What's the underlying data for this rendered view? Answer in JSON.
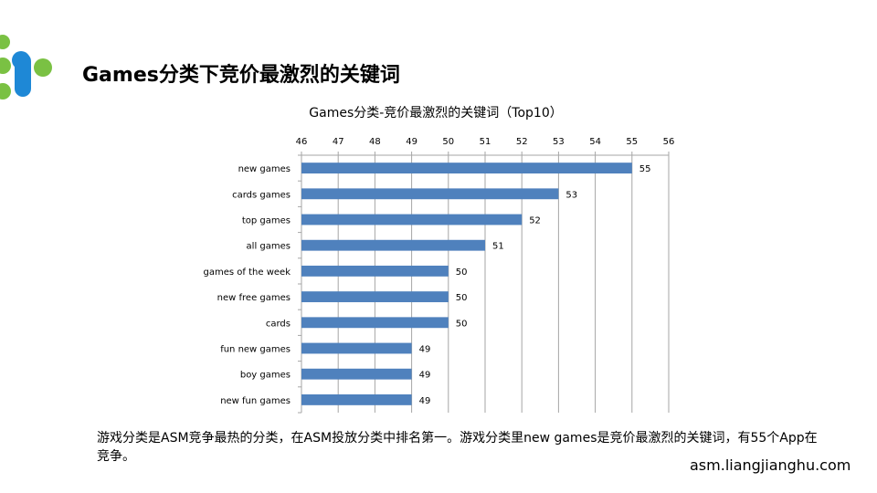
{
  "slide": {
    "title": "Games分类下竞价最激烈的关键词",
    "description": "游戏分类是ASM竞争最热的分类，在ASM投放分类中排名第一。游戏分类里new games是竞价最激烈的关键词，有55个App在竞争。",
    "footer_url": "asm.liangjianghu.com"
  },
  "logo": {
    "icon": "brand-logo-icon",
    "colors": [
      "#7ac143",
      "#1e88d6"
    ]
  },
  "chart_data": {
    "type": "bar",
    "orientation": "horizontal",
    "title": "Games分类-竞价最激烈的关键词（Top10）",
    "categories": [
      "new games",
      "cards games",
      "top games",
      "all games",
      "games of the week",
      "new free games",
      "cards",
      "fun new games",
      "boy games",
      "new fun games"
    ],
    "values": [
      55,
      53,
      52,
      51,
      50,
      50,
      50,
      49,
      49,
      49
    ],
    "xlim": [
      46,
      56
    ],
    "xticks": [
      "46",
      "47",
      "48",
      "49",
      "50",
      "51",
      "52",
      "53",
      "54",
      "55",
      "56"
    ],
    "x_axis_position": "top",
    "grid": true,
    "data_labels": true,
    "bar_color": "#4f81bd",
    "grid_color": "#a6a6a6"
  }
}
